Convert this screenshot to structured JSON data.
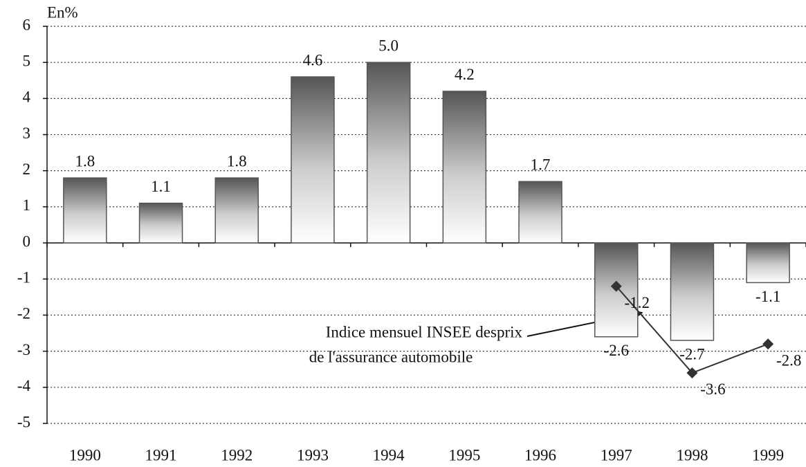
{
  "chart_data": {
    "type": "bar",
    "y_axis_label": "En%",
    "categories": [
      "1990",
      "1991",
      "1992",
      "1993",
      "1994",
      "1995",
      "1996",
      "1997",
      "1998",
      "1999"
    ],
    "series": [
      {
        "type": "bar",
        "color": "#555555",
        "values": [
          1.8,
          1.1,
          1.8,
          4.6,
          5.0,
          4.2,
          1.7,
          -2.6,
          -2.7,
          -1.1
        ],
        "value_labels": [
          "1.8",
          "1.1",
          "1.8",
          "4.6",
          "5.0",
          "4.2",
          "1.7",
          "-2.6",
          "-2.7",
          "-1.1"
        ]
      },
      {
        "type": "line",
        "color": "#333333",
        "values": [
          null,
          null,
          null,
          null,
          null,
          null,
          null,
          -1.2,
          -3.6,
          -2.8
        ]
      }
    ],
    "annotation": [
      "Indice mensuel INSEE desprix",
      "de l'assurance automobile"
    ],
    "ylim": [
      -5,
      6
    ],
    "yticks": [
      -5,
      -4,
      -3,
      -2,
      -1,
      0,
      1,
      2,
      3,
      4,
      5,
      6
    ],
    "grid": true
  }
}
